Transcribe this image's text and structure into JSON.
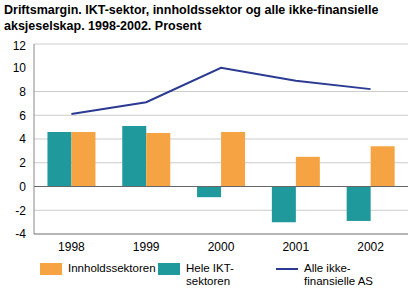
{
  "chart_data": {
    "type": "bar",
    "title": "Driftsmargin. IKT-sektor, innholdssektor og alle ikke-finansielle aksjeselskap. 1998-2002. Prosent",
    "categories": [
      "1998",
      "1999",
      "2000",
      "2001",
      "2002"
    ],
    "series": [
      {
        "name": "Innholdssektoren",
        "type": "bar",
        "color": "#f6a443",
        "values": [
          4.6,
          4.5,
          4.6,
          2.5,
          3.4
        ]
      },
      {
        "name": "Hele IKT-sektoren",
        "type": "bar",
        "color": "#1f999b",
        "values": [
          4.6,
          5.1,
          -0.9,
          -3.0,
          -2.9
        ]
      },
      {
        "name": "Alle ikke-finansielle AS",
        "type": "line",
        "color": "#2b3a92",
        "marker": "none",
        "values": [
          6.1,
          7.1,
          10.0,
          8.9,
          8.2
        ]
      }
    ],
    "ylim": [
      -4,
      12
    ],
    "yticks": [
      -4,
      -2,
      0,
      2,
      4,
      6,
      8,
      10,
      12
    ],
    "grid": true
  }
}
